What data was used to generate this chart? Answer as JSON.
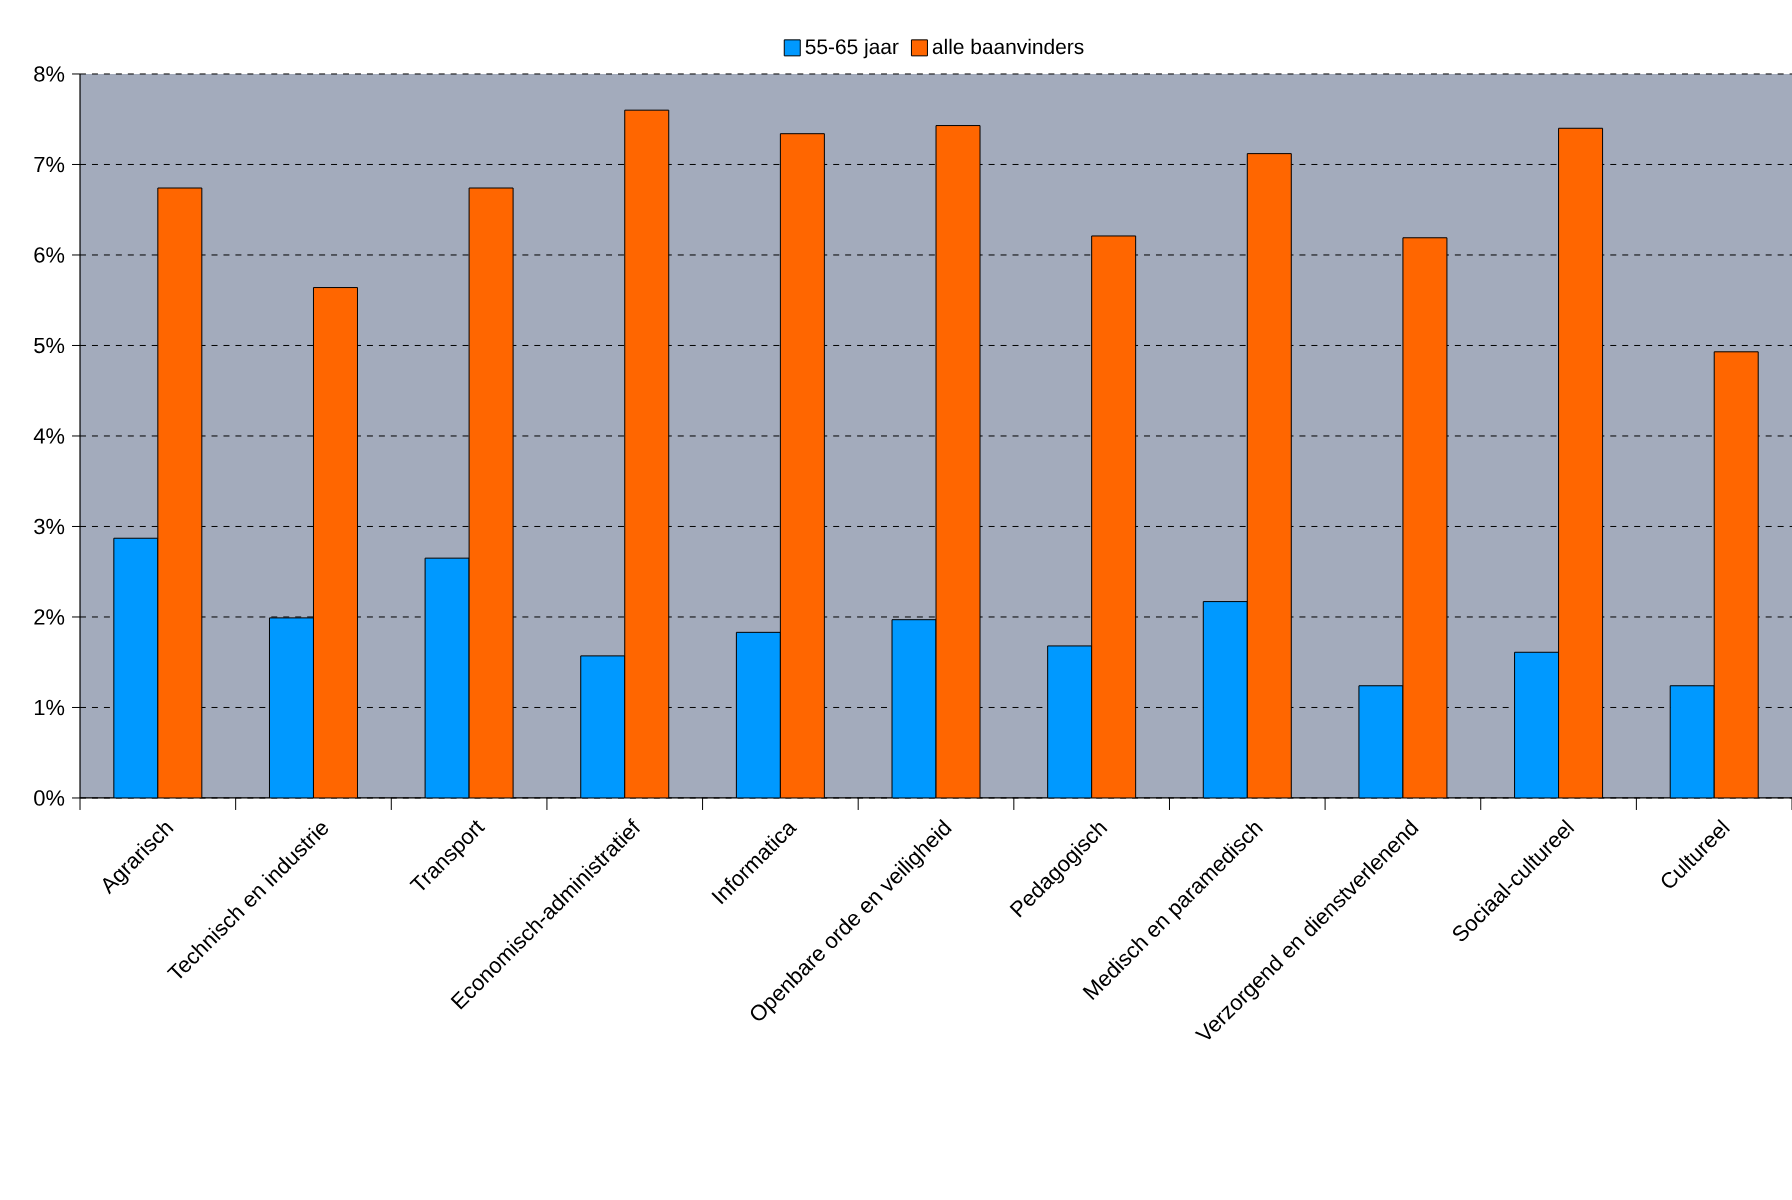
{
  "chart_data": {
    "type": "bar",
    "categories": [
      "Agrarisch",
      "Technisch en industrie",
      "Transport",
      "Economisch-administratief",
      "Informatica",
      "Openbare orde en veiligheid",
      "Pedagogisch",
      "Medisch en paramedisch",
      "Verzorgend en dienstverlenend",
      "Sociaal-cultureel",
      "Cultureel"
    ],
    "series": [
      {
        "name": "55-65 jaar",
        "color": "#0099ff",
        "values": [
          2.87,
          1.99,
          2.65,
          1.57,
          1.83,
          1.97,
          1.68,
          2.17,
          1.24,
          1.61,
          1.24
        ]
      },
      {
        "name": "alle baanvinders",
        "color": "#ff6600",
        "values": [
          6.74,
          5.64,
          6.74,
          7.6,
          7.34,
          7.43,
          6.21,
          7.12,
          6.19,
          7.4,
          4.93
        ]
      }
    ],
    "ylim": [
      0,
      8
    ],
    "yticks": [
      {
        "value": 0,
        "label": "0%"
      },
      {
        "value": 1,
        "label": "1%"
      },
      {
        "value": 2,
        "label": "2%"
      },
      {
        "value": 3,
        "label": "3%"
      },
      {
        "value": 4,
        "label": "4%"
      },
      {
        "value": 5,
        "label": "5%"
      },
      {
        "value": 6,
        "label": "6%"
      },
      {
        "value": 7,
        "label": "7%"
      },
      {
        "value": 8,
        "label": "8%"
      }
    ],
    "grid": "y",
    "legend": "top"
  }
}
